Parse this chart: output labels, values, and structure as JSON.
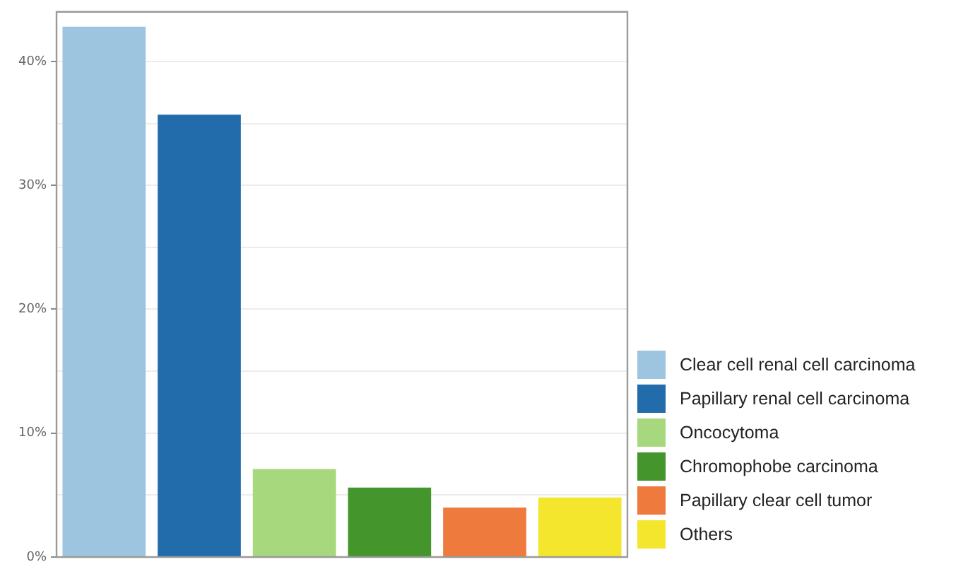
{
  "chart_data": {
    "type": "bar",
    "categories": [
      null,
      null,
      null,
      null,
      null,
      null
    ],
    "series": [
      {
        "name": "Clear cell renal cell carcinoma",
        "color": "#9ec5df",
        "values": [
          42.8,
          null,
          null,
          null,
          null,
          null
        ]
      },
      {
        "name": "Papillary renal cell carcinoma",
        "color": "#226cab",
        "values": [
          null,
          35.7,
          null,
          null,
          null,
          null
        ]
      },
      {
        "name": "Oncocytoma",
        "color": "#a8d87e",
        "values": [
          null,
          null,
          7.1,
          null,
          null,
          null
        ]
      },
      {
        "name": "Chromophobe carcinoma",
        "color": "#44962c",
        "values": [
          null,
          null,
          null,
          5.6,
          null,
          null
        ]
      },
      {
        "name": "Papillary clear cell tumor",
        "color": "#ef7a3d",
        "values": [
          null,
          null,
          null,
          null,
          4.0,
          null
        ]
      },
      {
        "name": "Others",
        "color": "#f4e52d",
        "values": [
          null,
          null,
          null,
          null,
          null,
          4.8
        ]
      }
    ],
    "ylim": [
      0,
      44
    ],
    "yticks": [
      {
        "value": 0,
        "label": "0%"
      },
      {
        "value": 5,
        "label": null
      },
      {
        "value": 10,
        "label": "10%"
      },
      {
        "value": 15,
        "label": null
      },
      {
        "value": 20,
        "label": "20%"
      },
      {
        "value": 25,
        "label": null
      },
      {
        "value": 30,
        "label": "30%"
      },
      {
        "value": 35,
        "label": null
      },
      {
        "value": 40,
        "label": "40%"
      }
    ],
    "grid": "y",
    "legend": "right",
    "tick_labels": "y"
  }
}
